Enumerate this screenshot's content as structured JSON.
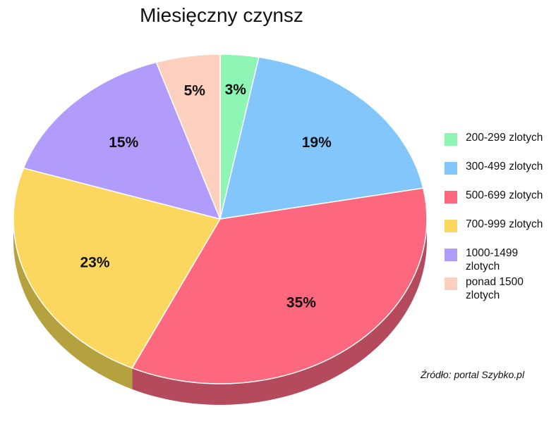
{
  "chart_data": {
    "type": "pie",
    "title": "Miesięczny czynsz",
    "source": "Źródło: portal Szybko.pl",
    "legend_position": "right",
    "categories": [
      "200-299 zlotych",
      "300-499 zlotych",
      "500-699 zlotych",
      "700-999 zlotych",
      "1000-1499 zlotych",
      "ponad 1500 zlotych"
    ],
    "values": [
      3,
      19,
      35,
      23,
      15,
      5
    ],
    "value_labels": [
      "3%",
      "19%",
      "35%",
      "23%",
      "15%",
      "5%"
    ],
    "colors": [
      "#8ff5b5",
      "#82c6fc",
      "#fd687e",
      "#fcd760",
      "#b19cfb",
      "#fdcfbf"
    ],
    "side_colors": [
      "#5fb47f",
      "#5a8fba",
      "#b54a5c",
      "#b5a23e",
      "#7d6fb5",
      "#b8958a"
    ],
    "style": "3d"
  }
}
